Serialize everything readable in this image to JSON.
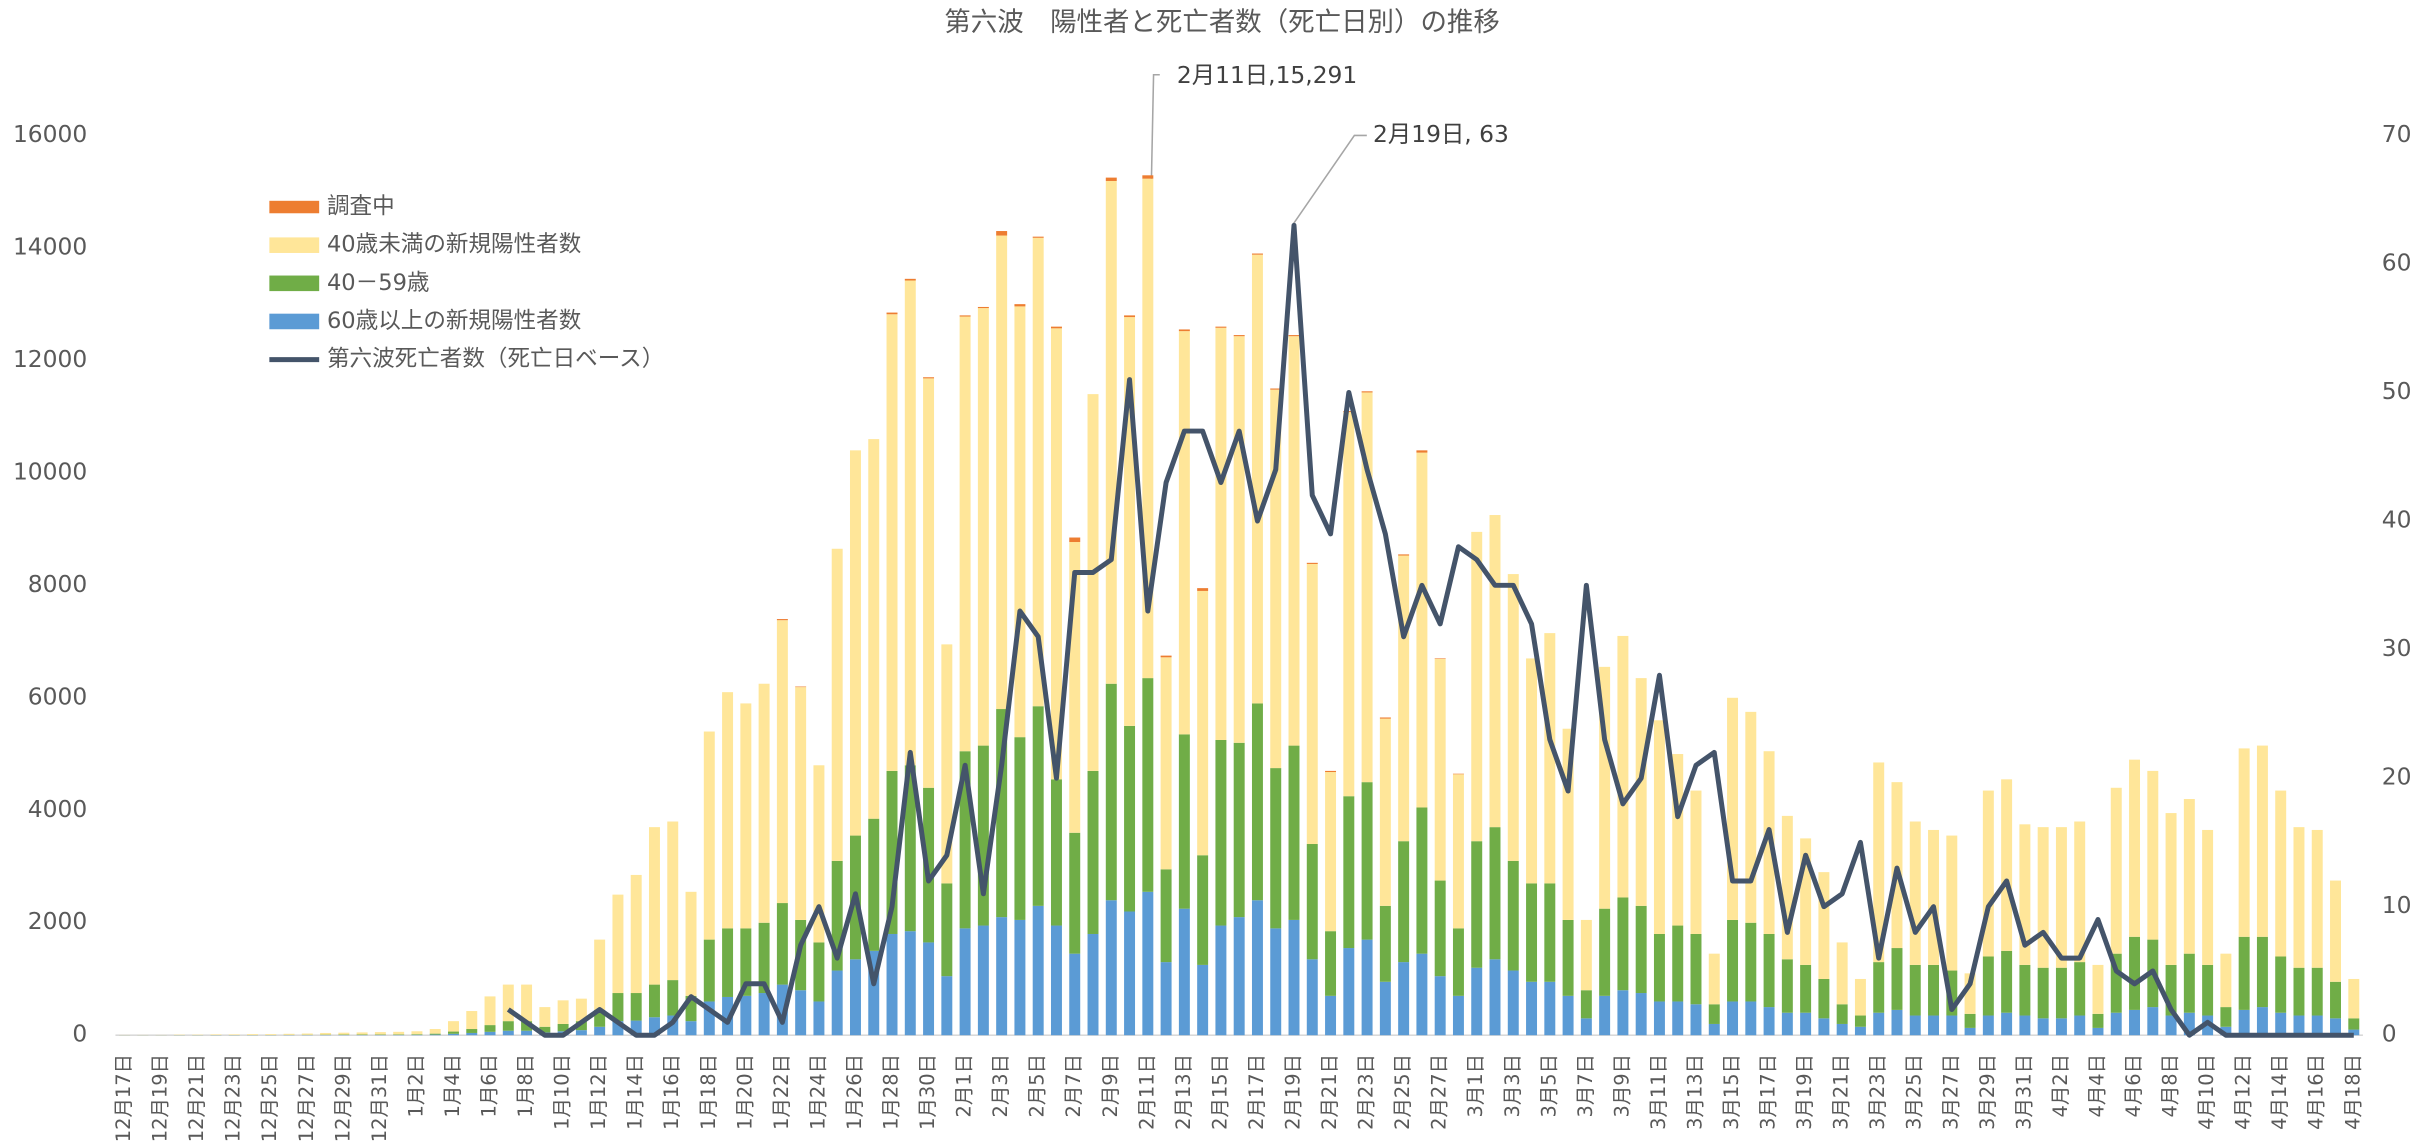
{
  "chart_data": {
    "type": "bar",
    "stacked": true,
    "title": "第六波　陽性者と死亡者数（死亡日別）の推移",
    "categories": [
      "12月17日",
      null,
      "12月19日",
      null,
      "12月21日",
      null,
      "12月23日",
      null,
      "12月25日",
      null,
      "12月27日",
      null,
      "12月29日",
      null,
      "12月31日",
      null,
      "1月2日",
      null,
      "1月4日",
      null,
      "1月6日",
      null,
      "1月8日",
      null,
      "1月10日",
      null,
      "1月12日",
      null,
      "1月14日",
      null,
      "1月16日",
      null,
      "1月18日",
      null,
      "1月20日",
      null,
      "1月22日",
      null,
      "1月24日",
      null,
      "1月26日",
      null,
      "1月28日",
      null,
      "1月30日",
      null,
      "2月1日",
      null,
      "2月3日",
      null,
      "2月5日",
      null,
      "2月7日",
      null,
      "2月9日",
      null,
      "2月11日",
      null,
      "2月13日",
      null,
      "2月15日",
      null,
      "2月17日",
      null,
      "2月19日",
      null,
      "2月21日",
      null,
      "2月23日",
      null,
      "2月25日",
      null,
      "2月27日",
      null,
      "3月1日",
      null,
      "3月3日",
      null,
      "3月5日",
      null,
      "3月7日",
      null,
      "3月9日",
      null,
      "3月11日",
      null,
      "3月13日",
      null,
      "3月15日",
      null,
      "3月17日",
      null,
      "3月19日",
      null,
      "3月21日",
      null,
      "3月23日",
      null,
      "3月25日",
      null,
      "3月27日",
      null,
      "3月29日",
      null,
      "3月31日",
      null,
      "4月2日",
      null,
      "4月4日",
      null,
      "4月6日",
      null,
      "4月8日",
      null,
      "4月10日",
      null,
      "4月12日",
      null,
      "4月14日",
      null,
      "4月16日",
      null,
      "4月18日"
    ],
    "series": [
      {
        "name": "調査中",
        "color": "#ed7d31",
        "values": [
          0,
          0,
          0,
          0,
          0,
          0,
          0,
          0,
          0,
          0,
          0,
          0,
          0,
          0,
          0,
          0,
          0,
          0,
          0,
          0,
          0,
          0,
          0,
          0,
          0,
          0,
          0,
          0,
          0,
          0,
          0,
          0,
          0,
          0,
          0,
          0,
          20,
          10,
          0,
          0,
          0,
          0,
          30,
          30,
          20,
          0,
          20,
          20,
          80,
          40,
          20,
          30,
          80,
          0,
          60,
          30,
          60,
          30,
          30,
          50,
          20,
          20,
          20,
          20,
          20,
          20,
          20,
          20,
          20,
          20,
          20,
          40,
          10,
          10,
          0,
          0,
          0,
          0,
          0,
          0,
          0,
          0,
          0,
          0,
          0,
          0,
          0,
          0,
          0,
          0,
          0,
          0,
          0,
          0,
          0,
          0,
          0,
          0,
          0,
          0,
          0,
          0,
          0,
          0,
          0,
          0,
          0,
          0,
          0,
          0,
          0,
          0,
          0,
          0,
          0,
          0,
          0,
          0,
          0,
          0,
          0,
          0,
          0
        ]
      },
      {
        "name": "40歳未満の新規陽性者数",
        "color": "#ffe699",
        "values": [
          3,
          3,
          3,
          7,
          7,
          11,
          11,
          15,
          15,
          18,
          22,
          30,
          33,
          37,
          41,
          45,
          52,
          82,
          185,
          320,
          510,
          650,
          650,
          350,
          420,
          400,
          1250,
          1750,
          2100,
          2800,
          2820,
          1850,
          3700,
          4200,
          4000,
          4250,
          5030,
          4140,
          3150,
          5550,
          6850,
          6750,
          8120,
          8620,
          7280,
          4250,
          7730,
          7780,
          8420,
          7660,
          8330,
          8020,
          5170,
          6700,
          8940,
          7270,
          8881,
          3770,
          7170,
          4700,
          7330,
          7230,
          7980,
          6730,
          7280,
          4980,
          2830,
          6830,
          6930,
          3330,
          5080,
          6310,
          3940,
          2740,
          5500,
          5550,
          5100,
          4000,
          4450,
          3400,
          1250,
          4300,
          4650,
          4050,
          3800,
          3050,
          2550,
          900,
          3950,
          3750,
          3250,
          2550,
          2250,
          1900,
          1100,
          650,
          3550,
          2950,
          2550,
          2400,
          2400,
          720,
          2950,
          3050,
          2500,
          2500,
          2500,
          2500,
          870,
          2950,
          3150,
          3000,
          2700,
          2750,
          2400,
          950,
          3350,
          3400,
          2950,
          2500,
          2450,
          1800,
          700
        ]
      },
      {
        "name": "40－59歳",
        "color": "#70ad47",
        "values": [
          1,
          1,
          1,
          2,
          2,
          2,
          2,
          3,
          3,
          4,
          5,
          6,
          7,
          8,
          8,
          9,
          11,
          17,
          40,
          70,
          120,
          170,
          170,
          100,
          130,
          160,
          300,
          500,
          490,
          580,
          630,
          450,
          1100,
          1220,
          1200,
          1250,
          1450,
          1250,
          1050,
          1950,
          2200,
          2350,
          2900,
          2950,
          2750,
          1650,
          3150,
          3200,
          3700,
          3250,
          3550,
          2600,
          2150,
          2900,
          3850,
          3300,
          3800,
          1650,
          3100,
          1950,
          3300,
          3100,
          3500,
          2850,
          3100,
          2050,
          1150,
          2700,
          2800,
          1350,
          2150,
          2600,
          1700,
          1200,
          2250,
          2350,
          1950,
          1750,
          1750,
          1350,
          500,
          1550,
          1650,
          1550,
          1200,
          1350,
          1250,
          350,
          1450,
          1400,
          1300,
          950,
          850,
          700,
          350,
          200,
          900,
          1100,
          900,
          900,
          800,
          250,
          1050,
          1100,
          900,
          900,
          900,
          950,
          250,
          1050,
          1300,
          1200,
          900,
          1050,
          900,
          350,
          1300,
          1250,
          1000,
          850,
          850,
          650,
          200
        ]
      },
      {
        "name": "60歳以上の新規陽性者数",
        "color": "#5b9bd5",
        "values": [
          1,
          1,
          1,
          1,
          1,
          2,
          2,
          2,
          2,
          3,
          3,
          4,
          5,
          5,
          6,
          6,
          7,
          11,
          25,
          40,
          60,
          80,
          80,
          50,
          70,
          90,
          150,
          250,
          260,
          320,
          350,
          250,
          600,
          680,
          700,
          750,
          900,
          800,
          600,
          1150,
          1350,
          1500,
          1800,
          1850,
          1650,
          1050,
          1900,
          1950,
          2100,
          2050,
          2300,
          1950,
          1450,
          1800,
          2400,
          2200,
          2550,
          1300,
          2250,
          1250,
          1950,
          2100,
          2400,
          1900,
          2050,
          1350,
          700,
          1550,
          1700,
          950,
          1300,
          1450,
          1050,
          700,
          1200,
          1350,
          1150,
          950,
          950,
          700,
          300,
          700,
          800,
          750,
          600,
          600,
          550,
          200,
          600,
          600,
          500,
          400,
          400,
          300,
          200,
          150,
          400,
          450,
          350,
          350,
          350,
          130,
          350,
          400,
          350,
          300,
          300,
          350,
          130,
          400,
          450,
          500,
          350,
          400,
          350,
          150,
          450,
          500,
          400,
          350,
          350,
          300,
          100
        ]
      },
      {
        "name": "第六波死亡者数（死亡日ベース）",
        "color": "#44546a",
        "type": "line",
        "axis": "y2",
        "values": [
          null,
          null,
          null,
          null,
          null,
          null,
          null,
          null,
          null,
          null,
          null,
          null,
          null,
          null,
          null,
          null,
          null,
          null,
          null,
          null,
          null,
          2,
          1,
          0,
          0,
          1,
          2,
          1,
          0,
          0,
          1,
          3,
          2,
          1,
          4,
          4,
          1,
          7,
          10,
          6,
          11,
          4,
          10,
          22,
          12,
          14,
          21,
          11,
          21,
          33,
          31,
          20,
          36,
          36,
          37,
          51,
          33,
          43,
          47,
          47,
          43,
          47,
          40,
          44,
          63,
          42,
          39,
          50,
          44,
          39,
          31,
          35,
          32,
          38,
          37,
          35,
          35,
          32,
          23,
          19,
          35,
          23,
          18,
          20,
          28,
          17,
          21,
          22,
          12,
          12,
          16,
          8,
          14,
          10,
          11,
          15,
          6,
          13,
          8,
          10,
          2,
          4,
          10,
          12,
          7,
          8,
          6,
          6,
          9,
          5,
          4,
          5,
          2,
          0,
          1,
          0,
          0,
          0,
          0,
          0,
          0,
          0,
          0
        ]
      }
    ],
    "ylim": [
      0,
      16000
    ],
    "yticks": [
      0,
      2000,
      4000,
      6000,
      8000,
      10000,
      12000,
      14000,
      16000
    ],
    "y2lim": [
      0,
      70
    ],
    "y2ticks": [
      0,
      10,
      20,
      30,
      40,
      50,
      60,
      70
    ],
    "legend": "upper left",
    "grid": false,
    "annotations": [
      "2月11日,15,291",
      "2月19日, 63"
    ]
  }
}
